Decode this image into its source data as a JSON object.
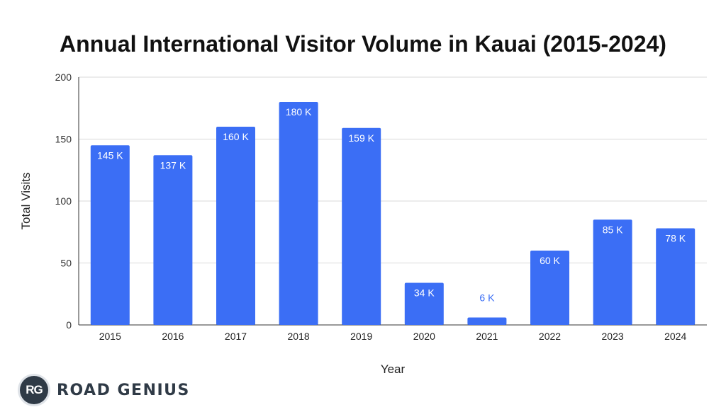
{
  "chart_data": {
    "type": "bar",
    "title": "Annual International Visitor Volume in Kauai (2015-2024)",
    "xlabel": "Year",
    "ylabel": "Total Visits",
    "categories": [
      "2015",
      "2016",
      "2017",
      "2018",
      "2019",
      "2020",
      "2021",
      "2022",
      "2023",
      "2024"
    ],
    "values": [
      145,
      137,
      160,
      180,
      159,
      34,
      6,
      60,
      85,
      78
    ],
    "data_labels": [
      "145 K",
      "137 K",
      "160 K",
      "180 K",
      "159 K",
      "34 K",
      "6 K",
      "60 K",
      "85 K",
      "78 K"
    ],
    "ylim": [
      0,
      200
    ],
    "yticks": [
      0,
      50,
      100,
      150,
      200
    ],
    "grid": true,
    "bar_color": "#3b6ef5",
    "label_inside_color": "#ffffff",
    "label_outside_color": "#3b6ef5"
  },
  "branding": {
    "logo_badge": "RG",
    "logo_text": "ROAD GENIUS"
  }
}
